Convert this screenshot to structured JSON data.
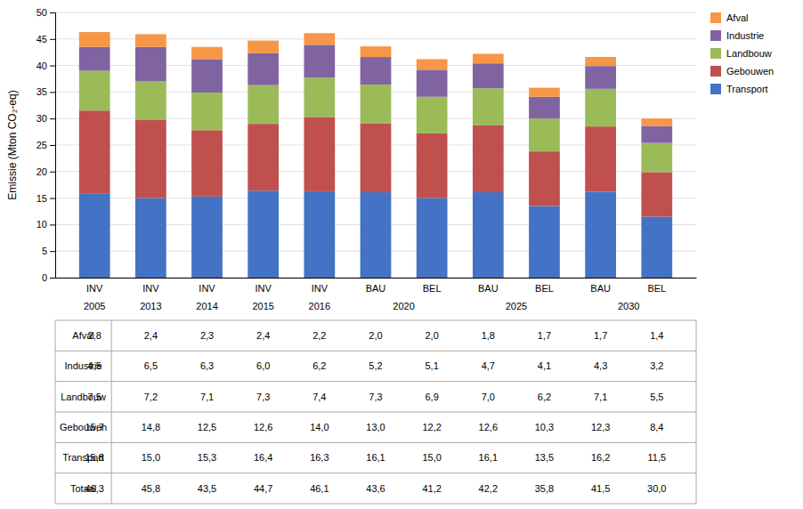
{
  "chart_data": {
    "type": "bar",
    "stacked": true,
    "ylabel": "Emissie (Mton CO₂-eq)",
    "categories": [
      "INV",
      "INV",
      "INV",
      "INV",
      "INV",
      "BAU",
      "BEL",
      "BAU",
      "BEL",
      "BAU",
      "BEL"
    ],
    "category_groups": [
      "2005",
      "2013",
      "2014",
      "2015",
      "2016",
      "2020",
      "2020",
      "2025",
      "2025",
      "2030",
      "2030"
    ],
    "series": [
      {
        "name": "Transport",
        "color": "#4472C4",
        "values": [
          15.8,
          15.0,
          15.3,
          16.4,
          16.3,
          16.1,
          15.0,
          16.1,
          13.5,
          16.2,
          11.5
        ]
      },
      {
        "name": "Gebouwen",
        "color": "#C0504D",
        "values": [
          15.7,
          14.8,
          12.5,
          12.6,
          14.0,
          13.0,
          12.2,
          12.6,
          10.3,
          12.3,
          8.4
        ]
      },
      {
        "name": "Landbouw",
        "color": "#9BBB59",
        "values": [
          7.5,
          7.2,
          7.1,
          7.3,
          7.4,
          7.3,
          6.9,
          7.0,
          6.2,
          7.1,
          5.5
        ]
      },
      {
        "name": "Industrie",
        "color": "#8064A2",
        "values": [
          4.5,
          6.5,
          6.3,
          6.0,
          6.2,
          5.2,
          5.1,
          4.7,
          4.1,
          4.3,
          3.2
        ]
      },
      {
        "name": "Afval",
        "color": "#F79646",
        "values": [
          2.8,
          2.4,
          2.3,
          2.4,
          2.2,
          2.0,
          2.0,
          1.8,
          1.7,
          1.7,
          1.4
        ]
      }
    ],
    "ylim": [
      0,
      50
    ],
    "yticks": [
      0,
      5,
      10,
      15,
      20,
      25,
      30,
      35,
      40,
      45,
      50
    ],
    "grid": true,
    "legend": "right",
    "table": {
      "rows": [
        {
          "label": "Afval",
          "values": [
            2.8,
            2.4,
            2.3,
            2.4,
            2.2,
            2.0,
            2.0,
            1.8,
            1.7,
            1.7,
            1.4
          ],
          "value_labels": [
            "2,8",
            "2,4",
            "2,3",
            "2,4",
            "2,2",
            "2,0",
            "2,0",
            "1,8",
            "1,7",
            "1,7",
            "1,4"
          ]
        },
        {
          "label": "Industrie",
          "values": [
            4.5,
            6.5,
            6.3,
            6.0,
            6.2,
            5.2,
            5.1,
            4.7,
            4.1,
            4.3,
            3.2
          ],
          "value_labels": [
            "4,5",
            "6,5",
            "6,3",
            "6,0",
            "6,2",
            "5,2",
            "5,1",
            "4,7",
            "4,1",
            "4,3",
            "3,2"
          ]
        },
        {
          "label": "Landbouw",
          "values": [
            7.5,
            7.2,
            7.1,
            7.3,
            7.4,
            7.3,
            6.9,
            7.0,
            6.2,
            7.1,
            5.5
          ],
          "value_labels": [
            "7,5",
            "7,2",
            "7,1",
            "7,3",
            "7,4",
            "7,3",
            "6,9",
            "7,0",
            "6,2",
            "7,1",
            "5,5"
          ]
        },
        {
          "label": "Gebouwen",
          "values": [
            15.7,
            14.8,
            12.5,
            12.6,
            14.0,
            13.0,
            12.2,
            12.6,
            10.3,
            12.3,
            8.4
          ],
          "value_labels": [
            "15,7",
            "14,8",
            "12,5",
            "12,6",
            "14,0",
            "13,0",
            "12,2",
            "12,6",
            "10,3",
            "12,3",
            "8,4"
          ]
        },
        {
          "label": "Transport",
          "values": [
            15.8,
            15.0,
            15.3,
            16.4,
            16.3,
            16.1,
            15.0,
            16.1,
            13.5,
            16.2,
            11.5
          ],
          "value_labels": [
            "15,8",
            "15,0",
            "15,3",
            "16,4",
            "16,3",
            "16,1",
            "15,0",
            "16,1",
            "13,5",
            "16,2",
            "11,5"
          ]
        },
        {
          "label": "Totaal",
          "values": [
            46.3,
            45.8,
            43.5,
            44.7,
            46.1,
            43.6,
            41.2,
            42.2,
            35.8,
            41.5,
            30.0
          ],
          "value_labels": [
            "46,3",
            "45,8",
            "43,5",
            "44,7",
            "46,1",
            "43,6",
            "41,2",
            "42,2",
            "35,8",
            "41,5",
            "30,0"
          ]
        }
      ]
    }
  }
}
